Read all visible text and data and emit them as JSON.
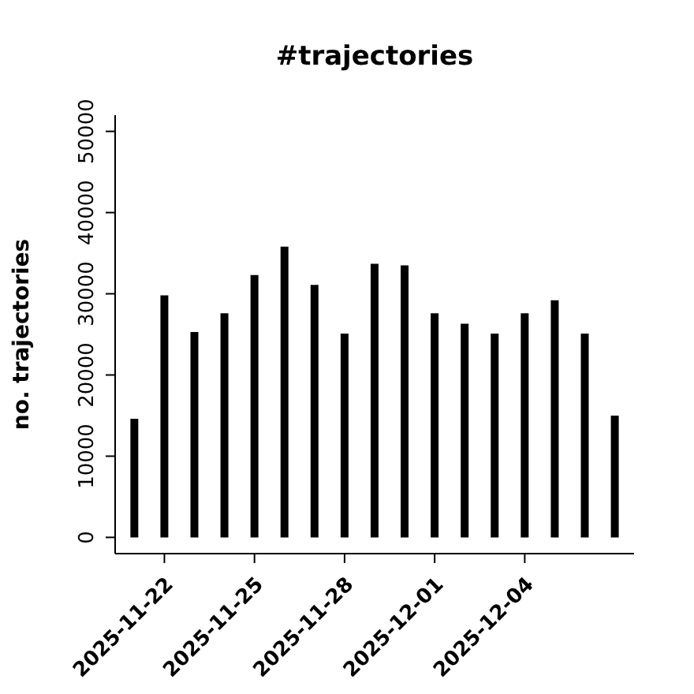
{
  "chart_data": {
    "type": "bar",
    "title": "#trajectories",
    "ylabel": "no. trajectories",
    "x": [
      "2025-11-21",
      "2025-11-22",
      "2025-11-23",
      "2025-11-24",
      "2025-11-25",
      "2025-11-26",
      "2025-11-27",
      "2025-11-28",
      "2025-11-29",
      "2025-11-30",
      "2025-12-01",
      "2025-12-02",
      "2025-12-03",
      "2025-12-04",
      "2025-12-05",
      "2025-12-06",
      "2025-12-07"
    ],
    "values": [
      14600,
      29800,
      25300,
      27600,
      32300,
      35800,
      31100,
      25100,
      33700,
      33500,
      27600,
      26300,
      25100,
      27600,
      29200,
      25100,
      15000
    ],
    "color": "#000000",
    "xlim": [
      "2025-11-20T08:38",
      "2025-12-07T15:22"
    ],
    "xticks": [
      "2025-11-22",
      "2025-11-25",
      "2025-11-28",
      "2025-12-01",
      "2025-12-04"
    ],
    "ylim": [
      -2000,
      52000
    ],
    "yticks": [
      0,
      10000,
      20000,
      30000,
      40000,
      50000
    ],
    "grid": false,
    "legend": false
  }
}
